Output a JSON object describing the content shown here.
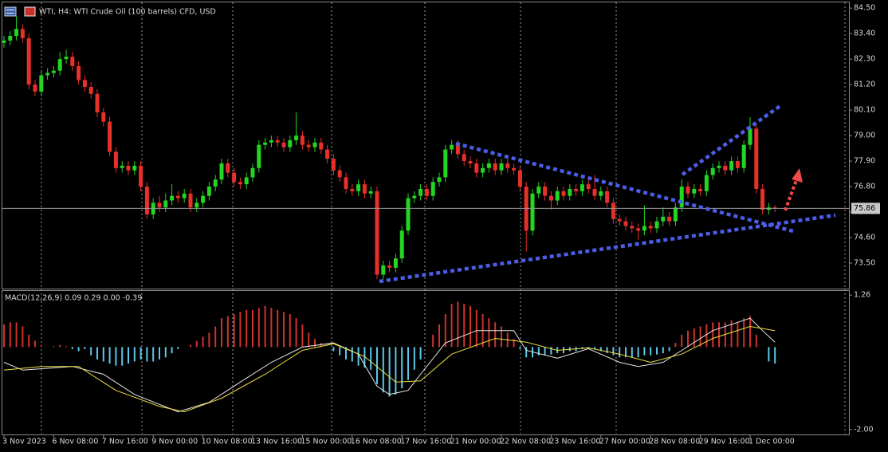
{
  "chart_data": [
    {
      "type": "candlestick",
      "title": "WTI, H4:  WTI Crude Oil (100 barrels) CFD, USD",
      "categories": [
        "3 Nov 2023",
        null,
        null,
        null,
        null,
        null,
        null,
        null,
        "6 Nov 08:00",
        null,
        null,
        null,
        null,
        null,
        null,
        null,
        "7 Nov 16:00",
        null,
        null,
        null,
        null,
        null,
        null,
        null,
        "9 Nov 00:00",
        null,
        null,
        null,
        null,
        null,
        null,
        null,
        "10 Nov 08:00",
        null,
        null,
        null,
        null,
        null,
        null,
        null,
        "13 Nov 16:00",
        null,
        null,
        null,
        null,
        null,
        null,
        null,
        "15 Nov 00:00",
        null,
        null,
        null,
        null,
        null,
        null,
        null,
        "16 Nov 08:00",
        null,
        null,
        null,
        null,
        null,
        null,
        null,
        "17 Nov 16:00",
        null,
        null,
        null,
        null,
        null,
        null,
        null,
        "21 Nov 00:00",
        null,
        null,
        null,
        null,
        null,
        null,
        null,
        "22 Nov 08:00",
        null,
        null,
        null,
        null,
        null,
        null,
        null,
        "23 Nov 16:00",
        null,
        null,
        null,
        null,
        null,
        null,
        null,
        "27 Nov 00:00",
        null,
        null,
        null,
        null,
        null,
        null,
        null,
        "28 Nov 08:00",
        null,
        null,
        null,
        null,
        null,
        null,
        null,
        "29 Nov 16:00",
        null,
        null,
        null,
        null,
        null,
        null,
        null,
        "1 Dec 00:00",
        null,
        null,
        null,
        null
      ],
      "open": [
        83.0,
        83.1,
        83.3,
        83.6,
        83.2,
        81.2,
        80.9,
        81.6,
        81.7,
        81.8,
        82.3,
        82.4,
        82.0,
        81.4,
        81.1,
        80.8,
        80.0,
        79.6,
        78.3,
        77.6,
        77.7,
        77.5,
        77.7,
        76.8,
        75.6,
        76.1,
        75.9,
        76.2,
        76.4,
        76.3,
        76.5,
        75.9,
        76.1,
        76.4,
        76.8,
        77.1,
        77.8,
        77.4,
        77.0,
        76.9,
        77.2,
        77.6,
        78.6,
        78.7,
        78.8,
        78.7,
        78.5,
        78.8,
        79.0,
        78.6,
        78.5,
        78.7,
        78.4,
        78.0,
        77.5,
        77.2,
        76.7,
        76.6,
        76.9,
        76.5,
        76.6,
        73.0,
        73.4,
        73.3,
        73.7,
        74.9,
        76.3,
        76.4,
        76.7,
        76.4,
        77.0,
        77.2,
        78.4,
        78.6,
        78.2,
        77.9,
        77.8,
        77.4,
        77.6,
        77.8,
        77.5,
        77.8,
        77.6,
        77.5,
        76.8,
        74.9,
        76.5,
        76.8,
        76.4,
        76.2,
        76.6,
        76.4,
        76.7,
        76.6,
        76.9,
        76.7,
        76.4,
        76.6,
        76.1,
        75.4,
        75.3,
        75.1,
        75.0,
        74.9,
        75.1,
        75.0,
        75.3,
        75.5,
        75.3,
        75.9,
        76.8,
        76.5,
        76.7,
        76.6,
        77.3,
        77.6,
        77.7,
        77.5,
        77.9,
        77.6,
        78.6,
        79.3,
        76.7,
        75.8,
        75.9
      ],
      "high": [
        83.3,
        83.5,
        84.15,
        83.8,
        83.4,
        81.4,
        81.8,
        81.9,
        82.0,
        82.6,
        82.7,
        82.6,
        82.2,
        81.6,
        81.3,
        81.0,
        80.2,
        79.8,
        78.5,
        77.9,
        77.9,
        77.9,
        77.9,
        77.0,
        76.3,
        76.4,
        76.5,
        76.9,
        76.6,
        76.7,
        76.7,
        76.3,
        76.6,
        77.0,
        77.3,
        78.0,
        78.0,
        77.6,
        77.2,
        77.4,
        77.8,
        78.8,
        78.9,
        79.0,
        79.0,
        78.9,
        79.0,
        80.0,
        79.2,
        78.8,
        78.9,
        78.9,
        78.6,
        78.2,
        77.7,
        77.4,
        76.9,
        77.1,
        77.1,
        76.8,
        76.8,
        73.6,
        73.6,
        73.9,
        75.1,
        76.5,
        76.6,
        76.9,
        76.9,
        77.2,
        77.4,
        78.6,
        78.8,
        78.8,
        78.4,
        78.1,
        78.0,
        77.8,
        78.0,
        78.0,
        78.0,
        78.0,
        77.8,
        77.7,
        77.0,
        76.7,
        77.0,
        77.0,
        76.6,
        76.8,
        76.8,
        76.9,
        76.9,
        77.1,
        77.1,
        77.3,
        76.8,
        76.8,
        76.3,
        75.6,
        75.5,
        75.3,
        75.2,
        76.0,
        75.3,
        75.5,
        75.9,
        75.7,
        76.1,
        77.1,
        77.0,
        76.9,
        76.9,
        77.5,
        77.8,
        77.9,
        77.9,
        78.1,
        78.1,
        78.8,
        79.8,
        79.5,
        76.9,
        76.1,
        76.0
      ],
      "low": [
        82.8,
        82.9,
        83.1,
        83.0,
        81.0,
        80.7,
        80.7,
        81.4,
        81.5,
        81.6,
        82.1,
        81.8,
        81.2,
        80.9,
        80.6,
        79.8,
        79.4,
        78.1,
        77.4,
        77.4,
        77.3,
        77.3,
        76.6,
        75.4,
        75.4,
        75.7,
        75.7,
        76.0,
        76.1,
        76.1,
        75.7,
        75.7,
        75.9,
        76.2,
        76.6,
        76.9,
        77.2,
        76.8,
        76.7,
        76.7,
        77.0,
        77.4,
        78.4,
        78.5,
        78.5,
        78.3,
        78.3,
        78.6,
        78.4,
        78.3,
        78.3,
        78.2,
        77.8,
        77.3,
        77.0,
        76.5,
        76.4,
        76.4,
        76.3,
        76.3,
        72.8,
        72.8,
        73.1,
        73.1,
        73.5,
        74.7,
        76.1,
        76.2,
        76.2,
        76.2,
        76.8,
        77.0,
        78.2,
        78.0,
        77.7,
        77.6,
        77.2,
        77.2,
        77.4,
        77.3,
        77.3,
        77.4,
        77.3,
        76.6,
        74.0,
        74.7,
        76.3,
        76.2,
        75.8,
        76.0,
        76.2,
        76.2,
        76.4,
        76.4,
        76.5,
        76.2,
        76.2,
        75.9,
        75.2,
        75.1,
        74.9,
        74.8,
        74.5,
        74.7,
        74.8,
        74.8,
        75.1,
        75.1,
        75.1,
        75.7,
        76.3,
        76.3,
        76.4,
        76.4,
        77.1,
        77.4,
        77.3,
        77.3,
        77.4,
        77.4,
        78.4,
        76.5,
        75.6,
        75.6,
        75.7
      ],
      "close": [
        83.1,
        83.3,
        83.6,
        83.2,
        81.2,
        80.9,
        81.6,
        81.7,
        81.8,
        82.3,
        82.4,
        82.0,
        81.4,
        81.1,
        80.8,
        80.0,
        79.6,
        78.3,
        77.6,
        77.7,
        77.5,
        77.7,
        76.8,
        75.6,
        76.1,
        75.9,
        76.2,
        76.4,
        76.3,
        76.5,
        75.9,
        76.1,
        76.4,
        76.8,
        77.1,
        77.8,
        77.4,
        77.0,
        76.9,
        77.2,
        77.6,
        78.6,
        78.7,
        78.8,
        78.7,
        78.5,
        78.8,
        79.0,
        78.6,
        78.5,
        78.7,
        78.4,
        78.0,
        77.5,
        77.2,
        76.7,
        76.6,
        76.9,
        76.5,
        76.6,
        73.0,
        73.4,
        73.3,
        73.7,
        74.9,
        76.3,
        76.4,
        76.7,
        76.4,
        77.0,
        77.2,
        78.4,
        78.6,
        78.2,
        77.9,
        77.8,
        77.4,
        77.6,
        77.8,
        77.5,
        77.8,
        77.6,
        77.5,
        76.8,
        74.9,
        76.5,
        76.8,
        76.4,
        76.2,
        76.6,
        76.4,
        76.7,
        76.6,
        76.9,
        76.7,
        76.4,
        76.6,
        76.1,
        75.4,
        75.3,
        75.1,
        75.0,
        74.9,
        75.1,
        75.0,
        75.3,
        75.5,
        75.3,
        75.9,
        76.8,
        76.5,
        76.7,
        76.6,
        77.3,
        77.6,
        77.7,
        77.5,
        77.9,
        77.6,
        78.6,
        79.3,
        76.7,
        75.8,
        75.9,
        75.86
      ],
      "up_color": "#22d622",
      "down_color": "#e8302a",
      "ylim": [
        72.4,
        84.78
      ],
      "yticks": [
        {
          "value": 84.5,
          "label": "84.50"
        },
        {
          "value": 83.4,
          "label": "83.40"
        },
        {
          "value": 82.3,
          "label": "82.30"
        },
        {
          "value": 81.2,
          "label": "81.20"
        },
        {
          "value": 80.1,
          "label": "80.10"
        },
        {
          "value": 79,
          "label": "79.00"
        },
        {
          "value": 77.9,
          "label": "77.90"
        },
        {
          "value": 76.8,
          "label": "76.80"
        },
        {
          "value": 75.7,
          "label": "75.70"
        },
        {
          "value": 74.6,
          "label": "74.60"
        },
        {
          "value": 73.5,
          "label": "73.50"
        }
      ],
      "last_price": 75.86
    },
    {
      "type": "bar",
      "title": "MACD(12,26,9) 0.09 0.29 0.00 -0.39",
      "values": [
        0.55,
        0.6,
        0.6,
        0.5,
        0.3,
        0.15,
        0.05,
        0.0,
        0.02,
        0.05,
        0.02,
        -0.05,
        -0.1,
        -0.05,
        -0.2,
        -0.3,
        -0.35,
        -0.4,
        -0.45,
        -0.45,
        -0.4,
        -0.35,
        -0.3,
        -0.35,
        -0.35,
        -0.3,
        -0.25,
        -0.15,
        -0.05,
        0.0,
        0.05,
        0.15,
        0.25,
        0.35,
        0.5,
        0.7,
        0.75,
        0.8,
        0.85,
        0.9,
        0.9,
        0.95,
        1.0,
        0.95,
        0.9,
        0.85,
        0.8,
        0.7,
        0.55,
        0.35,
        0.2,
        0.1,
        0.0,
        -0.1,
        -0.2,
        -0.3,
        -0.35,
        -0.45,
        -0.5,
        -0.55,
        -0.9,
        -1.1,
        -1.2,
        -1.15,
        -1.0,
        -0.8,
        -0.55,
        -0.3,
        0.0,
        0.3,
        0.55,
        0.8,
        1.05,
        1.1,
        1.05,
        1.0,
        0.9,
        0.8,
        0.7,
        0.6,
        0.5,
        0.35,
        0.2,
        -0.05,
        -0.25,
        -0.25,
        -0.2,
        -0.2,
        -0.18,
        -0.15,
        -0.15,
        -0.1,
        -0.1,
        -0.05,
        -0.05,
        -0.05,
        -0.1,
        -0.15,
        -0.2,
        -0.25,
        -0.25,
        -0.25,
        -0.25,
        -0.2,
        -0.2,
        -0.18,
        -0.15,
        -0.1,
        0.1,
        0.3,
        0.4,
        0.45,
        0.5,
        0.55,
        0.6,
        0.6,
        0.6,
        0.65,
        0.6,
        0.7,
        0.75,
        0.3,
        0.0,
        -0.35,
        -0.4
      ],
      "positive_color": "#d0322a",
      "negative_color": "#5cc8ea",
      "lines": [
        {
          "color": "#e6e6e6",
          "x": [
            0,
            3,
            11,
            16,
            21,
            28,
            33,
            38,
            43,
            48,
            53,
            57,
            60,
            62,
            65,
            67,
            71,
            76,
            82,
            84,
            89,
            94,
            99,
            102,
            106,
            109,
            114,
            120,
            122,
            124
          ],
          "values": [
            -0.37,
            -0.56,
            -0.47,
            -0.66,
            -1.15,
            -1.57,
            -1.34,
            -0.85,
            -0.37,
            0.0,
            0.1,
            -0.17,
            -0.95,
            -1.15,
            -1.05,
            -0.66,
            0.1,
            0.4,
            0.4,
            -0.08,
            -0.27,
            -0.04,
            -0.37,
            -0.47,
            -0.37,
            -0.08,
            0.4,
            0.7,
            0.4,
            0.12
          ]
        },
        {
          "color": "#f0e040",
          "x": [
            0,
            6,
            12,
            18,
            25,
            29,
            35,
            42,
            48,
            53,
            58,
            63,
            67,
            72,
            79,
            84,
            89,
            94,
            99,
            104,
            109,
            114,
            120,
            124
          ],
          "values": [
            -0.56,
            -0.47,
            -0.47,
            -1.05,
            -1.44,
            -1.57,
            -1.24,
            -0.66,
            -0.08,
            0.08,
            -0.23,
            -0.85,
            -0.82,
            -0.17,
            0.21,
            0.12,
            -0.08,
            -0.02,
            -0.17,
            -0.37,
            -0.17,
            0.21,
            0.5,
            0.4
          ]
        }
      ],
      "ylim": [
        -2.12,
        1.38
      ],
      "yticks": [
        1.26,
        {
          "value": -2,
          "label": "-2.00"
        }
      ]
    }
  ]
}
